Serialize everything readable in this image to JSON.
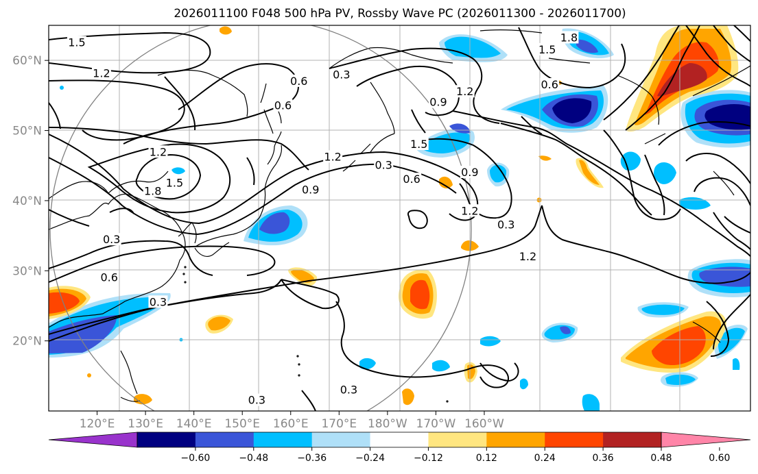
{
  "chart_data": {
    "type": "map-contour",
    "title": "2026011100 F048 500 hPa PV, Rossby Wave PC (2026011300 - 2026011700)",
    "lon_range": [
      110,
      255
    ],
    "lat_range": [
      10,
      65
    ],
    "x_ticks": [
      {
        "lon": 120,
        "label": "120°E"
      },
      {
        "lon": 130,
        "label": "130°E"
      },
      {
        "lon": 140,
        "label": "140°E"
      },
      {
        "lon": 150,
        "label": "150°E"
      },
      {
        "lon": 160,
        "label": "160°E"
      },
      {
        "lon": 170,
        "label": "170°E"
      },
      {
        "lon": 180,
        "label": "180°W"
      },
      {
        "lon": 190,
        "label": "170°W"
      },
      {
        "lon": 200,
        "label": "160°W"
      }
    ],
    "y_ticks": [
      {
        "lat": 20,
        "label": "20°N"
      },
      {
        "lat": 30,
        "label": "30°N"
      },
      {
        "lat": 40,
        "label": "40°N"
      },
      {
        "lat": 50,
        "label": "50°N"
      },
      {
        "lat": 60,
        "label": "60°N"
      }
    ],
    "grid": true,
    "colorbar": {
      "levels": [
        "−0.60",
        "−0.48",
        "−0.36",
        "−0.24",
        "−0.12",
        "0.12",
        "0.24",
        "0.36",
        "0.48",
        "0.60"
      ],
      "colors": [
        "#9933cc",
        "#000080",
        "#3a55d8",
        "#00bfff",
        "#afe0f8",
        "#ffffff",
        "#ffe680",
        "#ffa500",
        "#ff4500",
        "#b22222",
        "#ff85a8"
      ]
    },
    "contour_labels": [
      {
        "text": "1.5",
        "lon": 115.8,
        "lat": 62.5
      },
      {
        "text": "1.2",
        "lon": 120.9,
        "lat": 58.1
      },
      {
        "text": "1.2",
        "lon": 132.6,
        "lat": 46.9
      },
      {
        "text": "1.8",
        "lon": 131.5,
        "lat": 41.3
      },
      {
        "text": "1.5",
        "lon": 136.0,
        "lat": 42.5
      },
      {
        "text": "0.3",
        "lon": 123.0,
        "lat": 34.4
      },
      {
        "text": "0.6",
        "lon": 122.5,
        "lat": 29.0
      },
      {
        "text": "0.3",
        "lon": 132.6,
        "lat": 25.5
      },
      {
        "text": "0.6",
        "lon": 158.4,
        "lat": 53.5
      },
      {
        "text": "0.6",
        "lon": 161.7,
        "lat": 57.0
      },
      {
        "text": "0.3",
        "lon": 170.5,
        "lat": 57.9
      },
      {
        "text": "1.2",
        "lon": 168.7,
        "lat": 46.2
      },
      {
        "text": "0.9",
        "lon": 164.1,
        "lat": 41.5
      },
      {
        "text": "0.3",
        "lon": 179.2,
        "lat": 45.0
      },
      {
        "text": "1.5",
        "lon": 186.5,
        "lat": 48.0
      },
      {
        "text": "0.6",
        "lon": 185.0,
        "lat": 43.0
      },
      {
        "text": "0.9",
        "lon": 197.0,
        "lat": 44.0
      },
      {
        "text": "1.2",
        "lon": 197.0,
        "lat": 38.5
      },
      {
        "text": "0.3",
        "lon": 204.5,
        "lat": 36.5
      },
      {
        "text": "1.2",
        "lon": 209.0,
        "lat": 32.0
      },
      {
        "text": "1.2",
        "lon": 196.0,
        "lat": 55.5
      },
      {
        "text": "0.9",
        "lon": 190.5,
        "lat": 54.0
      },
      {
        "text": "1.5",
        "lon": 213.0,
        "lat": 61.5
      },
      {
        "text": "1.8",
        "lon": 217.5,
        "lat": 63.2
      },
      {
        "text": "0.6",
        "lon": 213.5,
        "lat": 56.5
      },
      {
        "text": "0.3",
        "lon": 172.0,
        "lat": 13.0
      },
      {
        "text": "0.3",
        "lon": 153.0,
        "lat": 11.5
      }
    ]
  }
}
